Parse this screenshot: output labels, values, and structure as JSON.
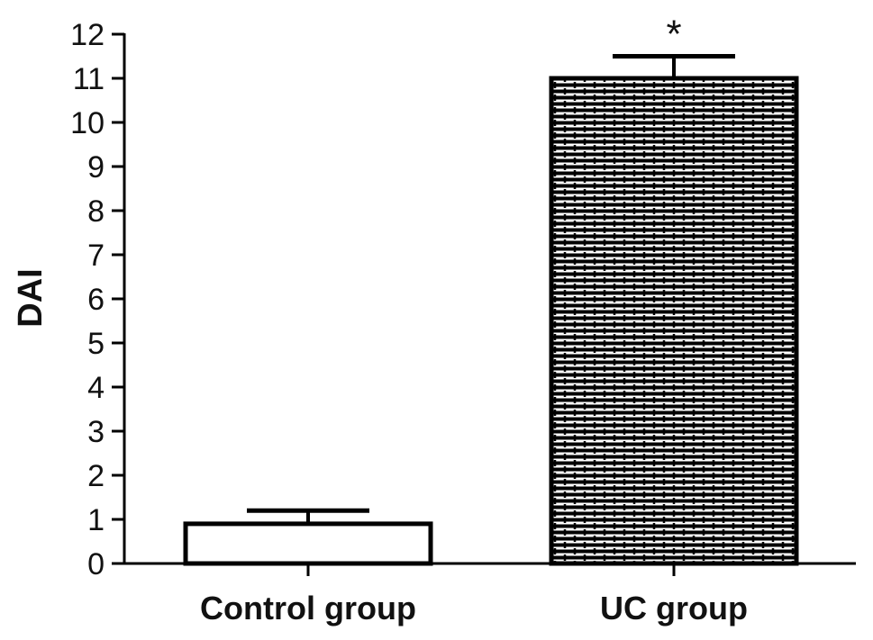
{
  "chart_data": {
    "type": "bar",
    "categories": [
      "Control group",
      "UC group"
    ],
    "values": [
      0.9,
      11.0
    ],
    "errors": [
      0.3,
      0.5
    ],
    "annotations": [
      "",
      "*"
    ],
    "ylabel": "DAI",
    "xlabel": "",
    "ylim": [
      0,
      12
    ],
    "yticks": [
      "0",
      "1",
      "2",
      "3",
      "4",
      "5",
      "6",
      "7",
      "8",
      "9",
      "10",
      "11",
      "12"
    ],
    "grid": false,
    "legend": "none",
    "fills": [
      "white",
      "brick-pattern"
    ],
    "colors": {
      "stroke": "#000000",
      "fill_plain": "#ffffff"
    }
  }
}
